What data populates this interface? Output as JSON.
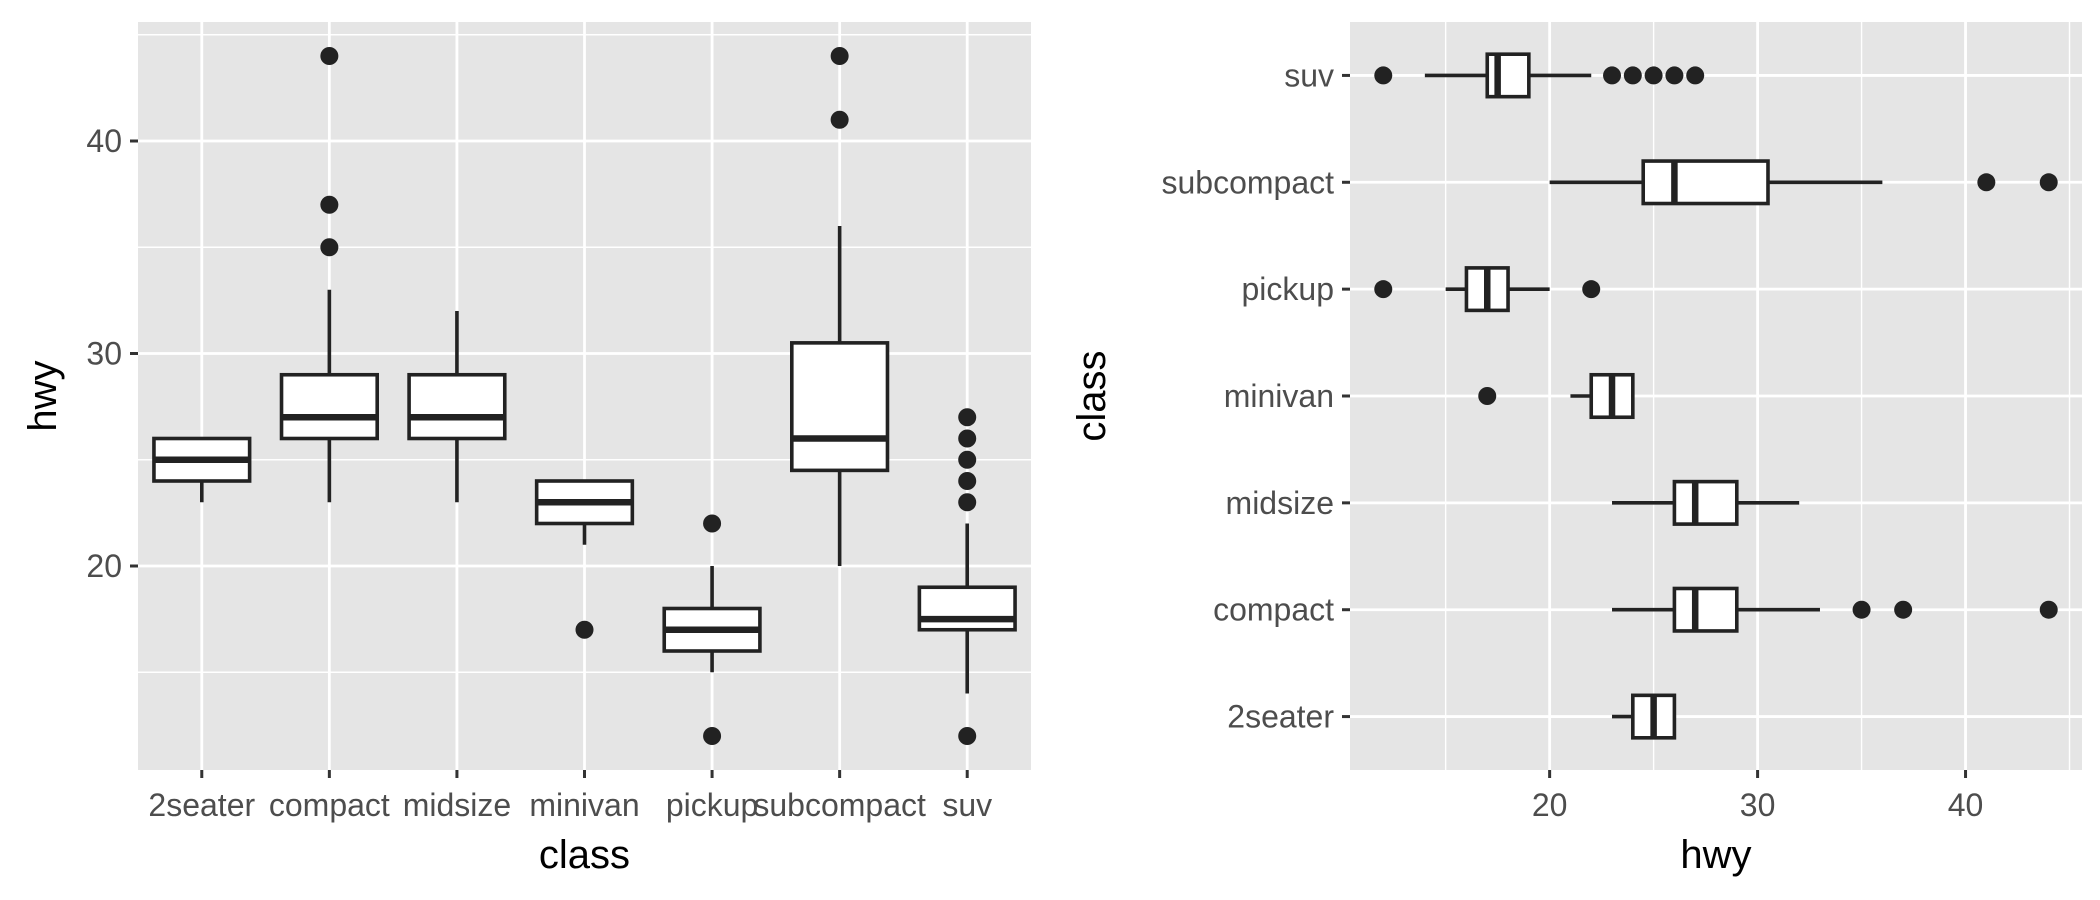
{
  "chart_data": [
    {
      "type": "boxplot",
      "orientation": "vertical",
      "xlabel": "class",
      "ylabel": "hwy",
      "categories": [
        "2seater",
        "compact",
        "midsize",
        "minivan",
        "pickup",
        "subcompact",
        "suv"
      ],
      "y_ticks": [
        20,
        30,
        40
      ],
      "ylim": [
        10.4,
        45.6
      ],
      "grid": true,
      "boxes": [
        {
          "category": "2seater",
          "whisker_low": 23,
          "q1": 24,
          "median": 25,
          "q3": 26,
          "whisker_high": 26,
          "outliers": []
        },
        {
          "category": "compact",
          "whisker_low": 23,
          "q1": 26,
          "median": 27,
          "q3": 29,
          "whisker_high": 33,
          "outliers": [
            35,
            37,
            44
          ]
        },
        {
          "category": "midsize",
          "whisker_low": 23,
          "q1": 26,
          "median": 27,
          "q3": 29,
          "whisker_high": 32,
          "outliers": []
        },
        {
          "category": "minivan",
          "whisker_low": 21,
          "q1": 22,
          "median": 23,
          "q3": 24,
          "whisker_high": 24,
          "outliers": [
            17
          ]
        },
        {
          "category": "pickup",
          "whisker_low": 15,
          "q1": 16,
          "median": 17,
          "q3": 18,
          "whisker_high": 20,
          "outliers": [
            12,
            22
          ]
        },
        {
          "category": "subcompact",
          "whisker_low": 20,
          "q1": 24.5,
          "median": 26,
          "q3": 30.5,
          "whisker_high": 36,
          "outliers": [
            41,
            44
          ]
        },
        {
          "category": "suv",
          "whisker_low": 14,
          "q1": 17,
          "median": 17.5,
          "q3": 19,
          "whisker_high": 22,
          "outliers": [
            12,
            23,
            24,
            25,
            26,
            27
          ]
        }
      ]
    },
    {
      "type": "boxplot",
      "orientation": "horizontal",
      "xlabel": "hwy",
      "ylabel": "class",
      "categories": [
        "2seater",
        "compact",
        "midsize",
        "minivan",
        "pickup",
        "subcompact",
        "suv"
      ],
      "x_ticks": [
        20,
        30,
        40
      ],
      "xlim": [
        10.4,
        45.6
      ],
      "grid": true,
      "boxes": [
        {
          "category": "2seater",
          "whisker_low": 23,
          "q1": 24,
          "median": 25,
          "q3": 26,
          "whisker_high": 26,
          "outliers": []
        },
        {
          "category": "compact",
          "whisker_low": 23,
          "q1": 26,
          "median": 27,
          "q3": 29,
          "whisker_high": 33,
          "outliers": [
            35,
            37,
            44
          ]
        },
        {
          "category": "midsize",
          "whisker_low": 23,
          "q1": 26,
          "median": 27,
          "q3": 29,
          "whisker_high": 32,
          "outliers": []
        },
        {
          "category": "minivan",
          "whisker_low": 21,
          "q1": 22,
          "median": 23,
          "q3": 24,
          "whisker_high": 24,
          "outliers": [
            17
          ]
        },
        {
          "category": "pickup",
          "whisker_low": 15,
          "q1": 16,
          "median": 17,
          "q3": 18,
          "whisker_high": 20,
          "outliers": [
            12,
            22
          ]
        },
        {
          "category": "subcompact",
          "whisker_low": 20,
          "q1": 24.5,
          "median": 26,
          "q3": 30.5,
          "whisker_high": 36,
          "outliers": [
            41,
            44
          ]
        },
        {
          "category": "suv",
          "whisker_low": 14,
          "q1": 17,
          "median": 17.5,
          "q3": 19,
          "whisker_high": 22,
          "outliers": [
            12,
            23,
            24,
            25,
            26,
            27
          ]
        }
      ]
    }
  ]
}
